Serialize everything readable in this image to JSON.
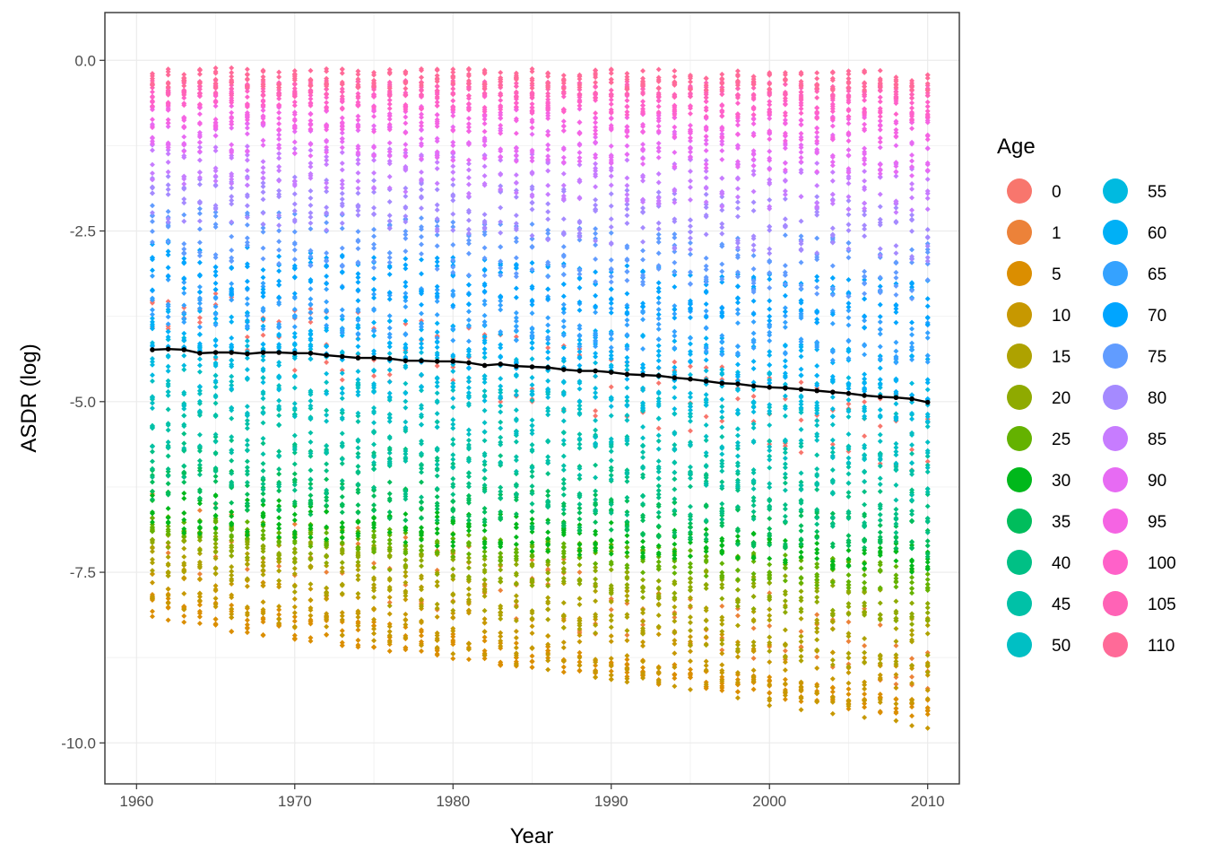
{
  "chart_data": {
    "type": "scatter",
    "title": "",
    "xlabel": "Year",
    "ylabel": "ASDR (log)",
    "xlim": [
      1958,
      2012
    ],
    "ylim": [
      -10.6,
      0.7
    ],
    "x_ticks": [
      1960,
      1970,
      1980,
      1990,
      2000,
      2010
    ],
    "x_tick_labels": [
      "1960",
      "1970",
      "1980",
      "1990",
      "2000",
      "2010"
    ],
    "y_ticks": [
      0,
      -2.5,
      -5,
      -7.5,
      -10
    ],
    "y_tick_labels": [
      "0.0",
      "-2.5",
      "-5.0",
      "-7.5",
      "-10.0"
    ],
    "grid": true,
    "years": [
      1961,
      2010
    ],
    "legend": {
      "title": "Age",
      "placement": "right",
      "columns": 2,
      "entries": [
        {
          "label": "0",
          "color": "#F8766D"
        },
        {
          "label": "1",
          "color": "#EC8239"
        },
        {
          "label": "5",
          "color": "#DB8E00"
        },
        {
          "label": "10",
          "color": "#C79800"
        },
        {
          "label": "15",
          "color": "#AEA200"
        },
        {
          "label": "20",
          "color": "#8FAA00"
        },
        {
          "label": "25",
          "color": "#64B200"
        },
        {
          "label": "30",
          "color": "#00B81B"
        },
        {
          "label": "35",
          "color": "#00BD5C"
        },
        {
          "label": "40",
          "color": "#00C085"
        },
        {
          "label": "45",
          "color": "#00C1A7"
        },
        {
          "label": "50",
          "color": "#00BFC4"
        },
        {
          "label": "55",
          "color": "#00BAE0"
        },
        {
          "label": "60",
          "color": "#00B0F6"
        },
        {
          "label": "65",
          "color": "#35A2FF"
        },
        {
          "label": "70",
          "color": "#00A5FF"
        },
        {
          "label": "75",
          "color": "#619CFF"
        },
        {
          "label": "80",
          "color": "#A58AFF"
        },
        {
          "label": "85",
          "color": "#C77CFF"
        },
        {
          "label": "90",
          "color": "#E76BF3"
        },
        {
          "label": "95",
          "color": "#F564E3"
        },
        {
          "label": "100",
          "color": "#FF61C9"
        },
        {
          "label": "105",
          "color": "#FF63B6"
        },
        {
          "label": "110",
          "color": "#FF6A98"
        }
      ]
    },
    "series": [
      {
        "type": "scatter",
        "description_color_by": "Age",
        "age_bands": [
          {
            "age": "0",
            "y_1961": -3.7,
            "y_2010": -5.5
          },
          {
            "age": "1",
            "y_1961": -6.9,
            "y_2010": -8.7
          },
          {
            "age": "5",
            "y_1961": -8.0,
            "y_2010": -9.5
          },
          {
            "age": "10",
            "y_1961": -7.7,
            "y_2010": -9.3
          },
          {
            "age": "15",
            "y_1961": -7.3,
            "y_2010": -8.6
          },
          {
            "age": "20",
            "y_1961": -7.0,
            "y_2010": -8.0
          },
          {
            "age": "25",
            "y_1961": -6.8,
            "y_2010": -7.6
          },
          {
            "age": "30",
            "y_1961": -6.6,
            "y_2010": -7.3
          },
          {
            "age": "35",
            "y_1961": -6.2,
            "y_2010": -7.0
          },
          {
            "age": "40",
            "y_1961": -5.8,
            "y_2010": -6.6
          },
          {
            "age": "45",
            "y_1961": -5.3,
            "y_2010": -6.1
          },
          {
            "age": "50",
            "y_1961": -4.8,
            "y_2010": -5.6
          },
          {
            "age": "55",
            "y_1961": -4.4,
            "y_2010": -5.0
          },
          {
            "age": "60",
            "y_1961": -3.9,
            "y_2010": -4.6
          },
          {
            "age": "65",
            "y_1961": -3.5,
            "y_2010": -4.1
          },
          {
            "age": "70",
            "y_1961": -3.0,
            "y_2010": -3.6
          },
          {
            "age": "75",
            "y_1961": -2.5,
            "y_2010": -3.1
          },
          {
            "age": "80",
            "y_1961": -2.0,
            "y_2010": -2.5
          },
          {
            "age": "85",
            "y_1961": -1.5,
            "y_2010": -1.9
          },
          {
            "age": "90",
            "y_1961": -1.1,
            "y_2010": -1.4
          },
          {
            "age": "95",
            "y_1961": -0.8,
            "y_2010": -1.0
          },
          {
            "age": "100",
            "y_1961": -0.55,
            "y_2010": -0.7
          },
          {
            "age": "105",
            "y_1961": -0.4,
            "y_2010": -0.45
          },
          {
            "age": "110",
            "y_1961": -0.25,
            "y_2010": -0.3
          }
        ]
      },
      {
        "type": "line",
        "color": "#000000",
        "x": [
          1961,
          1962,
          1963,
          1964,
          1965,
          1966,
          1967,
          1968,
          1969,
          1970,
          1971,
          1972,
          1973,
          1974,
          1975,
          1976,
          1977,
          1978,
          1979,
          1980,
          1981,
          1982,
          1983,
          1984,
          1985,
          1986,
          1987,
          1988,
          1989,
          1990,
          1991,
          1992,
          1993,
          1994,
          1995,
          1996,
          1997,
          1998,
          1999,
          2000,
          2001,
          2002,
          2003,
          2004,
          2005,
          2006,
          2007,
          2008,
          2009,
          2010
        ],
        "y": [
          -4.24,
          -4.23,
          -4.24,
          -4.29,
          -4.28,
          -4.28,
          -4.3,
          -4.28,
          -4.28,
          -4.29,
          -4.29,
          -4.32,
          -4.34,
          -4.36,
          -4.36,
          -4.37,
          -4.4,
          -4.4,
          -4.41,
          -4.41,
          -4.43,
          -4.47,
          -4.45,
          -4.48,
          -4.49,
          -4.5,
          -4.53,
          -4.55,
          -4.55,
          -4.57,
          -4.6,
          -4.61,
          -4.62,
          -4.65,
          -4.67,
          -4.7,
          -4.73,
          -4.74,
          -4.77,
          -4.79,
          -4.8,
          -4.82,
          -4.84,
          -4.86,
          -4.88,
          -4.91,
          -4.93,
          -4.94,
          -4.96,
          -5.01
        ]
      }
    ]
  }
}
